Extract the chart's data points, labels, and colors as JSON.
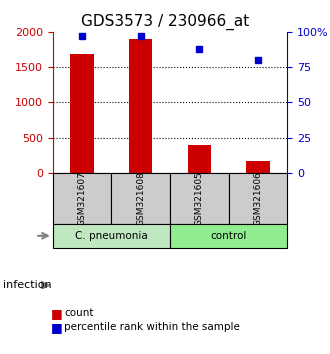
{
  "title": "GDS3573 / 230966_at",
  "samples": [
    "GSM321607",
    "GSM321608",
    "GSM321605",
    "GSM321606"
  ],
  "counts": [
    1680,
    1900,
    400,
    175
  ],
  "percentiles": [
    97,
    97,
    88,
    80
  ],
  "group_labels": [
    "C. pneumonia",
    "control"
  ],
  "group_colors": [
    "#c0e8c0",
    "#90ee90"
  ],
  "sample_box_color": "#cccccc",
  "bar_color": "#cc0000",
  "dot_color": "#0000cc",
  "ylim_left": [
    0,
    2000
  ],
  "ylim_right": [
    0,
    100
  ],
  "yticks_left": [
    0,
    500,
    1000,
    1500,
    2000
  ],
  "yticks_right": [
    0,
    25,
    50,
    75,
    100
  ],
  "ytick_labels_right": [
    "0",
    "25",
    "50",
    "75",
    "100%"
  ],
  "grid_values": [
    500,
    1000,
    1500
  ],
  "infection_label": "infection",
  "legend_count": "count",
  "legend_percentile": "percentile rank within the sample",
  "title_fontsize": 11,
  "bar_width": 0.4
}
